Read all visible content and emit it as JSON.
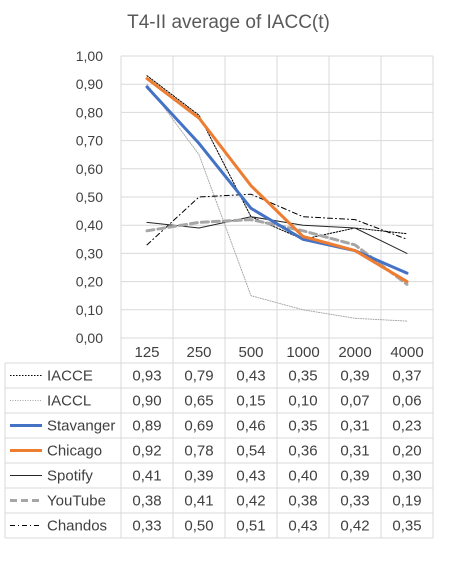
{
  "chart_data": {
    "type": "line",
    "title": "T4-II average of IACC(t)",
    "categories": [
      "125",
      "250",
      "500",
      "1000",
      "2000",
      "4000"
    ],
    "y_ticks": [
      "0,00",
      "0,10",
      "0,20",
      "0,30",
      "0,40",
      "0,50",
      "0,60",
      "0,70",
      "0,80",
      "0,90",
      "1,00"
    ],
    "ylim": [
      0,
      1
    ],
    "grid": true,
    "legend": "data table below plot",
    "series": [
      {
        "name": "IACCE",
        "values": [
          0.93,
          0.79,
          0.43,
          0.35,
          0.39,
          0.37
        ],
        "labels": [
          "0,93",
          "0,79",
          "0,43",
          "0,35",
          "0,39",
          "0,37"
        ],
        "color": "#000000",
        "style": "dotted"
      },
      {
        "name": "IACCL",
        "values": [
          0.9,
          0.65,
          0.15,
          0.1,
          0.07,
          0.06
        ],
        "labels": [
          "0,90",
          "0,65",
          "0,15",
          "0,10",
          "0,07",
          "0,06"
        ],
        "color": "#a6a6a6",
        "style": "fine-dotted"
      },
      {
        "name": "Stavanger",
        "values": [
          0.89,
          0.69,
          0.46,
          0.35,
          0.31,
          0.23
        ],
        "labels": [
          "0,89",
          "0,69",
          "0,46",
          "0,35",
          "0,31",
          "0,23"
        ],
        "color": "#4472c4",
        "style": "solid-thick"
      },
      {
        "name": "Chicago",
        "values": [
          0.92,
          0.78,
          0.54,
          0.36,
          0.31,
          0.2
        ],
        "labels": [
          "0,92",
          "0,78",
          "0,54",
          "0,36",
          "0,31",
          "0,20"
        ],
        "color": "#ed7d31",
        "style": "solid-thick"
      },
      {
        "name": "Spotify",
        "values": [
          0.41,
          0.39,
          0.43,
          0.4,
          0.39,
          0.3
        ],
        "labels": [
          "0,41",
          "0,39",
          "0,43",
          "0,40",
          "0,39",
          "0,30"
        ],
        "color": "#262626",
        "style": "solid-thin"
      },
      {
        "name": "YouTube",
        "values": [
          0.38,
          0.41,
          0.42,
          0.38,
          0.33,
          0.19
        ],
        "labels": [
          "0,38",
          "0,41",
          "0,42",
          "0,38",
          "0,33",
          "0,19"
        ],
        "color": "#a6a6a6",
        "style": "dashed-thick"
      },
      {
        "name": "Chandos",
        "values": [
          0.33,
          0.5,
          0.51,
          0.43,
          0.42,
          0.35
        ],
        "labels": [
          "0,33",
          "0,50",
          "0,51",
          "0,43",
          "0,42",
          "0,35"
        ],
        "color": "#000000",
        "style": "dash-dot"
      }
    ]
  }
}
